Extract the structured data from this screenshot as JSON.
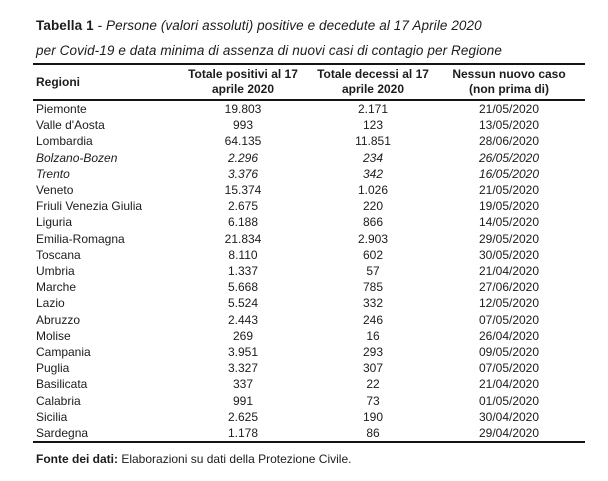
{
  "title": {
    "label": "Tabella 1",
    "rest_line1": " - Persone (valori assoluti) positive e decedute al 17 Aprile 2020",
    "line2": "per Covid-19 e data minima di assenza di nuovi casi di contagio per Regione"
  },
  "table": {
    "headers": {
      "region": "Regioni",
      "pos_line1": "Totale positivi al 17",
      "pos_line2": "aprile 2020",
      "dec_line1": "Totale decessi al 17",
      "dec_line2": "aprile 2020",
      "new_line1": "Nessun nuovo caso",
      "new_line2": "(non prima di)"
    },
    "rows": [
      {
        "region": "Piemonte",
        "positivi": "19.803",
        "decessi": "2.171",
        "no_new_case": "21/05/2020",
        "italic": false
      },
      {
        "region": "Valle d'Aosta",
        "positivi": "993",
        "decessi": "123",
        "no_new_case": "13/05/2020",
        "italic": false
      },
      {
        "region": "Lombardia",
        "positivi": "64.135",
        "decessi": "11.851",
        "no_new_case": "28/06/2020",
        "italic": false
      },
      {
        "region": "Bolzano-Bozen",
        "positivi": "2.296",
        "decessi": "234",
        "no_new_case": "26/05/2020",
        "italic": true
      },
      {
        "region": "Trento",
        "positivi": "3.376",
        "decessi": "342",
        "no_new_case": "16/05/2020",
        "italic": true
      },
      {
        "region": "Veneto",
        "positivi": "15.374",
        "decessi": "1.026",
        "no_new_case": "21/05/2020",
        "italic": false
      },
      {
        "region": "Friuli Venezia Giulia",
        "positivi": "2.675",
        "decessi": "220",
        "no_new_case": "19/05/2020",
        "italic": false
      },
      {
        "region": "Liguria",
        "positivi": "6.188",
        "decessi": "866",
        "no_new_case": "14/05/2020",
        "italic": false
      },
      {
        "region": "Emilia-Romagna",
        "positivi": "21.834",
        "decessi": "2.903",
        "no_new_case": "29/05/2020",
        "italic": false
      },
      {
        "region": "Toscana",
        "positivi": "8.110",
        "decessi": "602",
        "no_new_case": "30/05/2020",
        "italic": false
      },
      {
        "region": "Umbria",
        "positivi": "1.337",
        "decessi": "57",
        "no_new_case": "21/04/2020",
        "italic": false
      },
      {
        "region": "Marche",
        "positivi": "5.668",
        "decessi": "785",
        "no_new_case": "27/06/2020",
        "italic": false
      },
      {
        "region": "Lazio",
        "positivi": "5.524",
        "decessi": "332",
        "no_new_case": "12/05/2020",
        "italic": false
      },
      {
        "region": "Abruzzo",
        "positivi": "2.443",
        "decessi": "246",
        "no_new_case": "07/05/2020",
        "italic": false
      },
      {
        "region": "Molise",
        "positivi": "269",
        "decessi": "16",
        "no_new_case": "26/04/2020",
        "italic": false
      },
      {
        "region": "Campania",
        "positivi": "3.951",
        "decessi": "293",
        "no_new_case": "09/05/2020",
        "italic": false
      },
      {
        "region": "Puglia",
        "positivi": "3.327",
        "decessi": "307",
        "no_new_case": "07/05/2020",
        "italic": false
      },
      {
        "region": "Basilicata",
        "positivi": "337",
        "decessi": "22",
        "no_new_case": "21/04/2020",
        "italic": false
      },
      {
        "region": "Calabria",
        "positivi": "991",
        "decessi": "73",
        "no_new_case": "01/05/2020",
        "italic": false
      },
      {
        "region": "Sicilia",
        "positivi": "2.625",
        "decessi": "190",
        "no_new_case": "30/04/2020",
        "italic": false
      },
      {
        "region": "Sardegna",
        "positivi": "1.178",
        "decessi": "86",
        "no_new_case": "29/04/2020",
        "italic": false
      }
    ]
  },
  "footer": {
    "bold": "Fonte dei dati:",
    "text": " Elaborazioni su dati della Protezione Civile."
  }
}
